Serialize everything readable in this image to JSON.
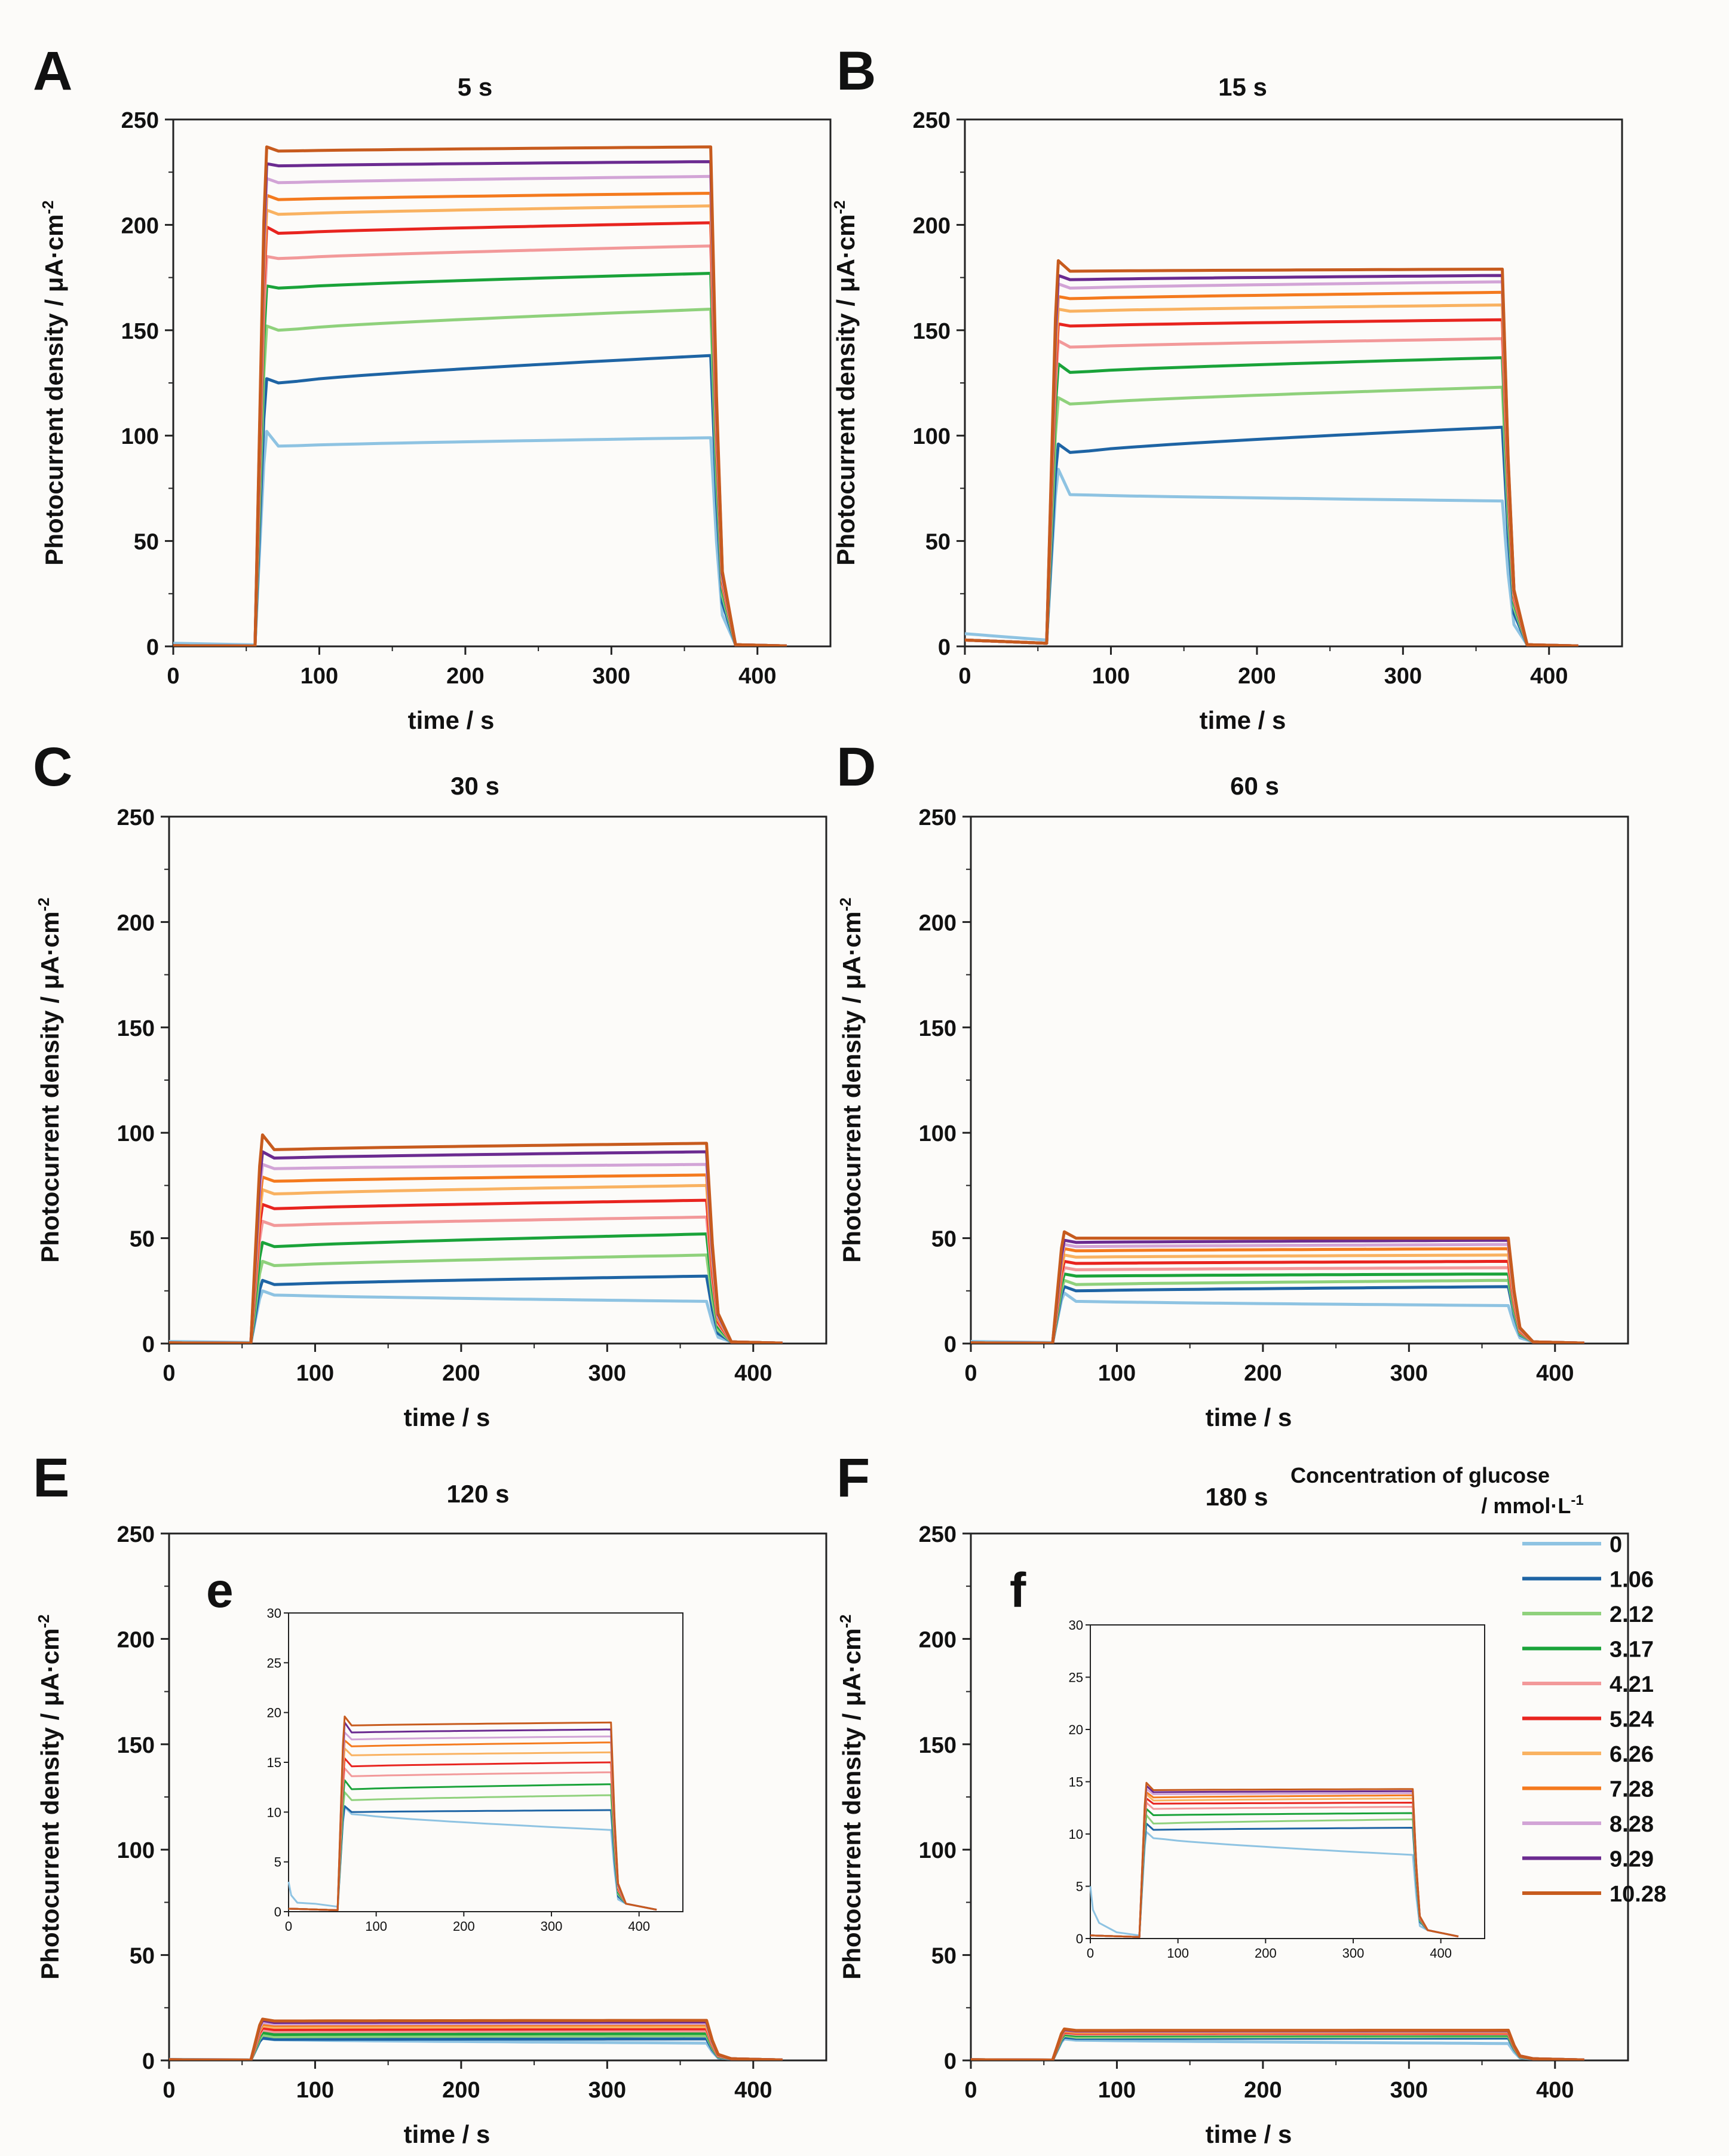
{
  "legend": {
    "title": "Concentration of glucose",
    "unit_text": "/ mmol·L",
    "unit_sup": "-1",
    "entries": [
      {
        "label": "0",
        "color": "#8ec3e2"
      },
      {
        "label": "1.06",
        "color": "#1e64a4"
      },
      {
        "label": "2.12",
        "color": "#8fd17c"
      },
      {
        "label": "3.17",
        "color": "#1aa33a"
      },
      {
        "label": "4.21",
        "color": "#f2999a"
      },
      {
        "label": "5.24",
        "color": "#e8241f"
      },
      {
        "label": "6.26",
        "color": "#f9b261"
      },
      {
        "label": "7.28",
        "color": "#f47a1e"
      },
      {
        "label": "8.28",
        "color": "#d2a4d6"
      },
      {
        "label": "9.29",
        "color": "#6b2b90"
      },
      {
        "label": "10.28",
        "color": "#c75b1e"
      }
    ]
  },
  "axis_text": {
    "xlabel": "time / s",
    "ylabel": "Photocurrent density / μA·cm",
    "ylabel_sup": "-2"
  },
  "chart_data": [
    {
      "type": "line",
      "panel": "A",
      "title": "5 s",
      "xlabel": "time / s",
      "ylabel": "Photocurrent density / μA·cm-2",
      "xlim": [
        0,
        450
      ],
      "ylim": [
        0,
        250
      ],
      "xticks": [
        0,
        100,
        200,
        300,
        400
      ],
      "yticks": [
        0,
        50,
        100,
        150,
        200,
        250
      ],
      "light_on_s": 60,
      "light_off_s": 370,
      "end_s": 420,
      "series": [
        {
          "name": "0",
          "baseline": 1.5,
          "spike": 102,
          "start": 95,
          "end": 99
        },
        {
          "name": "1.06",
          "baseline": 0.3,
          "spike": 127,
          "start": 125,
          "end": 138
        },
        {
          "name": "2.12",
          "baseline": 0.3,
          "spike": 152,
          "start": 150,
          "end": 160
        },
        {
          "name": "3.17",
          "baseline": 0.3,
          "spike": 171,
          "start": 170,
          "end": 177
        },
        {
          "name": "4.21",
          "baseline": 0.3,
          "spike": 185,
          "start": 184,
          "end": 190
        },
        {
          "name": "5.24",
          "baseline": 0.3,
          "spike": 199,
          "start": 196,
          "end": 201
        },
        {
          "name": "6.26",
          "baseline": 0.3,
          "spike": 207,
          "start": 205,
          "end": 209
        },
        {
          "name": "7.28",
          "baseline": 0.3,
          "spike": 214,
          "start": 212,
          "end": 215
        },
        {
          "name": "8.28",
          "baseline": 0.3,
          "spike": 222,
          "start": 220,
          "end": 223
        },
        {
          "name": "9.29",
          "baseline": 0.3,
          "spike": 229,
          "start": 228,
          "end": 230
        },
        {
          "name": "10.28",
          "baseline": 0.3,
          "spike": 237,
          "start": 235,
          "end": 237
        }
      ]
    },
    {
      "type": "line",
      "panel": "B",
      "title": "15 s",
      "xlabel": "time / s",
      "ylabel": "Photocurrent density / μA·cm-2",
      "xlim": [
        0,
        450
      ],
      "ylim": [
        0,
        250
      ],
      "xticks": [
        0,
        100,
        200,
        300,
        400
      ],
      "yticks": [
        0,
        50,
        100,
        150,
        200,
        250
      ],
      "light_on_s": 60,
      "light_off_s": 370,
      "end_s": 420,
      "series": [
        {
          "name": "0",
          "baseline": 6,
          "spike": 84,
          "start": 72,
          "end": 69
        },
        {
          "name": "1.06",
          "baseline": 3,
          "spike": 96,
          "start": 92,
          "end": 104
        },
        {
          "name": "2.12",
          "baseline": 3,
          "spike": 118,
          "start": 115,
          "end": 123
        },
        {
          "name": "3.17",
          "baseline": 3,
          "spike": 134,
          "start": 130,
          "end": 137
        },
        {
          "name": "4.21",
          "baseline": 3,
          "spike": 145,
          "start": 142,
          "end": 146
        },
        {
          "name": "5.24",
          "baseline": 3,
          "spike": 153,
          "start": 152,
          "end": 155
        },
        {
          "name": "6.26",
          "baseline": 3,
          "spike": 160,
          "start": 159,
          "end": 162
        },
        {
          "name": "7.28",
          "baseline": 3,
          "spike": 166,
          "start": 165,
          "end": 168
        },
        {
          "name": "8.28",
          "baseline": 3,
          "spike": 172,
          "start": 170,
          "end": 173
        },
        {
          "name": "9.29",
          "baseline": 3,
          "spike": 176,
          "start": 174,
          "end": 176
        },
        {
          "name": "10.28",
          "baseline": 3,
          "spike": 183,
          "start": 178,
          "end": 179
        }
      ]
    },
    {
      "type": "line",
      "panel": "C",
      "title": "30 s",
      "xlabel": "time / s",
      "ylabel": "Photocurrent density / μA·cm-2",
      "xlim": [
        0,
        450
      ],
      "ylim": [
        0,
        250
      ],
      "xticks": [
        0,
        100,
        200,
        300,
        400
      ],
      "yticks": [
        0,
        50,
        100,
        150,
        200,
        250
      ],
      "light_on_s": 60,
      "light_off_s": 370,
      "end_s": 420,
      "series": [
        {
          "name": "0",
          "baseline": 1,
          "spike": 25,
          "start": 23,
          "end": 20
        },
        {
          "name": "1.06",
          "baseline": 0.3,
          "spike": 30,
          "start": 28,
          "end": 32
        },
        {
          "name": "2.12",
          "baseline": 0.3,
          "spike": 39,
          "start": 37,
          "end": 42
        },
        {
          "name": "3.17",
          "baseline": 0.3,
          "spike": 48,
          "start": 46,
          "end": 52
        },
        {
          "name": "4.21",
          "baseline": 0.3,
          "spike": 58,
          "start": 56,
          "end": 60
        },
        {
          "name": "5.24",
          "baseline": 0.3,
          "spike": 66,
          "start": 64,
          "end": 68
        },
        {
          "name": "6.26",
          "baseline": 0.3,
          "spike": 73,
          "start": 71,
          "end": 75
        },
        {
          "name": "7.28",
          "baseline": 0.3,
          "spike": 79,
          "start": 77,
          "end": 80
        },
        {
          "name": "8.28",
          "baseline": 0.3,
          "spike": 85,
          "start": 83,
          "end": 85
        },
        {
          "name": "9.29",
          "baseline": 0.3,
          "spike": 91,
          "start": 88,
          "end": 91
        },
        {
          "name": "10.28",
          "baseline": 0.3,
          "spike": 99,
          "start": 92,
          "end": 95
        }
      ]
    },
    {
      "type": "line",
      "panel": "D",
      "title": "60 s",
      "xlabel": "time / s",
      "ylabel": "Photocurrent density / μA·cm-2",
      "xlim": [
        0,
        450
      ],
      "ylim": [
        0,
        250
      ],
      "xticks": [
        0,
        100,
        200,
        300,
        400
      ],
      "yticks": [
        0,
        50,
        100,
        150,
        200,
        250
      ],
      "light_on_s": 60,
      "light_off_s": 370,
      "end_s": 420,
      "series": [
        {
          "name": "0",
          "baseline": 1,
          "spike": 24,
          "start": 20,
          "end": 18
        },
        {
          "name": "1.06",
          "baseline": 0.3,
          "spike": 27,
          "start": 25,
          "end": 27
        },
        {
          "name": "2.12",
          "baseline": 0.3,
          "spike": 30,
          "start": 28,
          "end": 30
        },
        {
          "name": "3.17",
          "baseline": 0.3,
          "spike": 33,
          "start": 32,
          "end": 33
        },
        {
          "name": "4.21",
          "baseline": 0.3,
          "spike": 36,
          "start": 35,
          "end": 36
        },
        {
          "name": "5.24",
          "baseline": 0.3,
          "spike": 39,
          "start": 38,
          "end": 39
        },
        {
          "name": "6.26",
          "baseline": 0.3,
          "spike": 42,
          "start": 41,
          "end": 42
        },
        {
          "name": "7.28",
          "baseline": 0.3,
          "spike": 45,
          "start": 44,
          "end": 45
        },
        {
          "name": "8.28",
          "baseline": 0.3,
          "spike": 47,
          "start": 46,
          "end": 47
        },
        {
          "name": "9.29",
          "baseline": 0.3,
          "spike": 49,
          "start": 48,
          "end": 49
        },
        {
          "name": "10.28",
          "baseline": 0.3,
          "spike": 53,
          "start": 50,
          "end": 50
        }
      ]
    },
    {
      "type": "line",
      "panel": "E",
      "title": "120 s",
      "xlabel": "time / s",
      "ylabel": "Photocurrent density / μA·cm-2",
      "xlim": [
        0,
        450
      ],
      "ylim": [
        0,
        250
      ],
      "xticks": [
        0,
        100,
        200,
        300,
        400
      ],
      "yticks": [
        0,
        50,
        100,
        150,
        200,
        250
      ],
      "light_on_s": 60,
      "light_off_s": 370,
      "end_s": 420,
      "inset": {
        "label": "e",
        "xlim": [
          0,
          450
        ],
        "ylim": [
          0,
          30
        ],
        "xticks": [
          0,
          100,
          200,
          300,
          400
        ],
        "yticks": [
          0,
          5,
          10,
          15,
          20,
          25,
          30
        ]
      },
      "series": [
        {
          "name": "0",
          "baseline": 0.5,
          "spike": 10.5,
          "start": 9.8,
          "end": 8.2
        },
        {
          "name": "1.06",
          "baseline": 0.3,
          "spike": 10.6,
          "start": 10.0,
          "end": 10.2
        },
        {
          "name": "2.12",
          "baseline": 0.3,
          "spike": 12.0,
          "start": 11.2,
          "end": 11.7
        },
        {
          "name": "3.17",
          "baseline": 0.3,
          "spike": 13.2,
          "start": 12.3,
          "end": 12.8
        },
        {
          "name": "4.21",
          "baseline": 0.3,
          "spike": 14.4,
          "start": 13.6,
          "end": 14.0
        },
        {
          "name": "5.24",
          "baseline": 0.3,
          "spike": 15.4,
          "start": 14.6,
          "end": 15.0
        },
        {
          "name": "6.26",
          "baseline": 0.3,
          "spike": 16.4,
          "start": 15.7,
          "end": 16.0
        },
        {
          "name": "7.28",
          "baseline": 0.3,
          "spike": 17.2,
          "start": 16.6,
          "end": 17.0
        },
        {
          "name": "8.28",
          "baseline": 0.3,
          "spike": 18.0,
          "start": 17.3,
          "end": 17.6
        },
        {
          "name": "9.29",
          "baseline": 0.3,
          "spike": 19.0,
          "start": 18.0,
          "end": 18.3
        },
        {
          "name": "10.28",
          "baseline": 0.3,
          "spike": 19.6,
          "start": 18.7,
          "end": 19.0
        }
      ],
      "inset_decay_series": "0",
      "inset_decay_start": 3
    },
    {
      "type": "line",
      "panel": "F",
      "title": "180 s",
      "xlabel": "time / s",
      "ylabel": "Photocurrent density / μA·cm-2",
      "xlim": [
        0,
        450
      ],
      "ylim": [
        0,
        250
      ],
      "xticks": [
        0,
        100,
        200,
        300,
        400
      ],
      "yticks": [
        0,
        50,
        100,
        150,
        200,
        250
      ],
      "light_on_s": 60,
      "light_off_s": 370,
      "end_s": 420,
      "inset": {
        "label": "f",
        "xlim": [
          0,
          450
        ],
        "ylim": [
          0,
          30
        ],
        "xticks": [
          0,
          100,
          200,
          300,
          400
        ],
        "yticks": [
          0,
          5,
          10,
          15,
          20,
          25,
          30
        ]
      },
      "series": [
        {
          "name": "0",
          "baseline": 0.3,
          "spike": 10.2,
          "start": 9.6,
          "end": 8.0
        },
        {
          "name": "1.06",
          "baseline": 0.3,
          "spike": 11.0,
          "start": 10.4,
          "end": 10.6
        },
        {
          "name": "2.12",
          "baseline": 0.3,
          "spike": 11.8,
          "start": 11.0,
          "end": 11.4
        },
        {
          "name": "3.17",
          "baseline": 0.3,
          "spike": 12.4,
          "start": 11.8,
          "end": 12.0
        },
        {
          "name": "4.21",
          "baseline": 0.3,
          "spike": 13.0,
          "start": 12.4,
          "end": 12.6
        },
        {
          "name": "5.24",
          "baseline": 0.3,
          "spike": 13.4,
          "start": 12.9,
          "end": 13.0
        },
        {
          "name": "6.26",
          "baseline": 0.3,
          "spike": 13.8,
          "start": 13.2,
          "end": 13.4
        },
        {
          "name": "7.28",
          "baseline": 0.3,
          "spike": 14.0,
          "start": 13.5,
          "end": 13.7
        },
        {
          "name": "8.28",
          "baseline": 0.3,
          "spike": 14.3,
          "start": 13.8,
          "end": 13.9
        },
        {
          "name": "9.29",
          "baseline": 0.3,
          "spike": 14.6,
          "start": 14.0,
          "end": 14.1
        },
        {
          "name": "10.28",
          "baseline": 0.3,
          "spike": 14.9,
          "start": 14.2,
          "end": 14.3
        }
      ],
      "inset_decay_series": "0",
      "inset_decay_start": 5
    }
  ]
}
